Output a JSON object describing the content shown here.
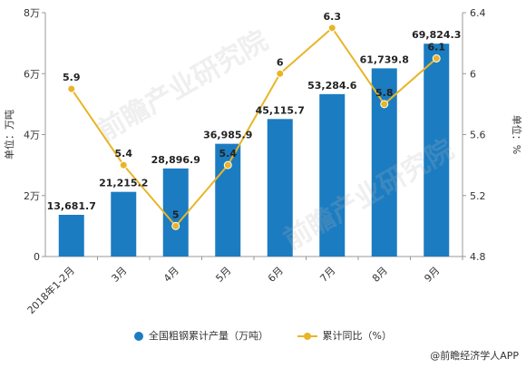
{
  "chart_data": {
    "type": "bar",
    "categories": [
      "2018年1-2月",
      "3月",
      "4月",
      "5月",
      "6月",
      "7月",
      "8月",
      "9月"
    ],
    "series": [
      {
        "name": "全国粗钢累计产量（万吨）",
        "type": "bar",
        "axis": "left",
        "values": [
          13681.7,
          21215.2,
          28896.9,
          36985.9,
          45115.7,
          53284.6,
          61739.8,
          69824.3
        ],
        "labels": [
          "13,681.7",
          "21,215.2",
          "28,896.9",
          "36,985.9",
          "45,115.7",
          "53,284.6",
          "61,739.8",
          "69,824.3"
        ],
        "color": "#1b7cc1"
      },
      {
        "name": "累计同比（%）",
        "type": "line",
        "axis": "right",
        "values": [
          5.9,
          5.4,
          5,
          5.4,
          6,
          6.3,
          5.8,
          6.1
        ],
        "labels": [
          "5.9",
          "5.4",
          "5",
          "5.4",
          "6",
          "6.3",
          "5.8",
          "6.1"
        ],
        "color": "#e8b527"
      }
    ],
    "y_left": {
      "label": "单位：万吨",
      "ylim": [
        0,
        80000
      ],
      "ticks": [
        0,
        20000,
        40000,
        60000,
        80000
      ],
      "tick_labels": [
        "0",
        "2万",
        "4万",
        "6万",
        "8万"
      ]
    },
    "y_right": {
      "label": "单位：%",
      "ylim": [
        4.8,
        6.4
      ],
      "ticks": [
        4.8,
        5.2,
        5.6,
        6,
        6.4
      ],
      "tick_labels": [
        "4.8",
        "5.2",
        "5.6",
        "6",
        "6.4"
      ]
    },
    "grid": false,
    "legend": "bottom"
  },
  "watermark": "前瞻产业研究院",
  "footer": "@前瞻经济学人APP"
}
